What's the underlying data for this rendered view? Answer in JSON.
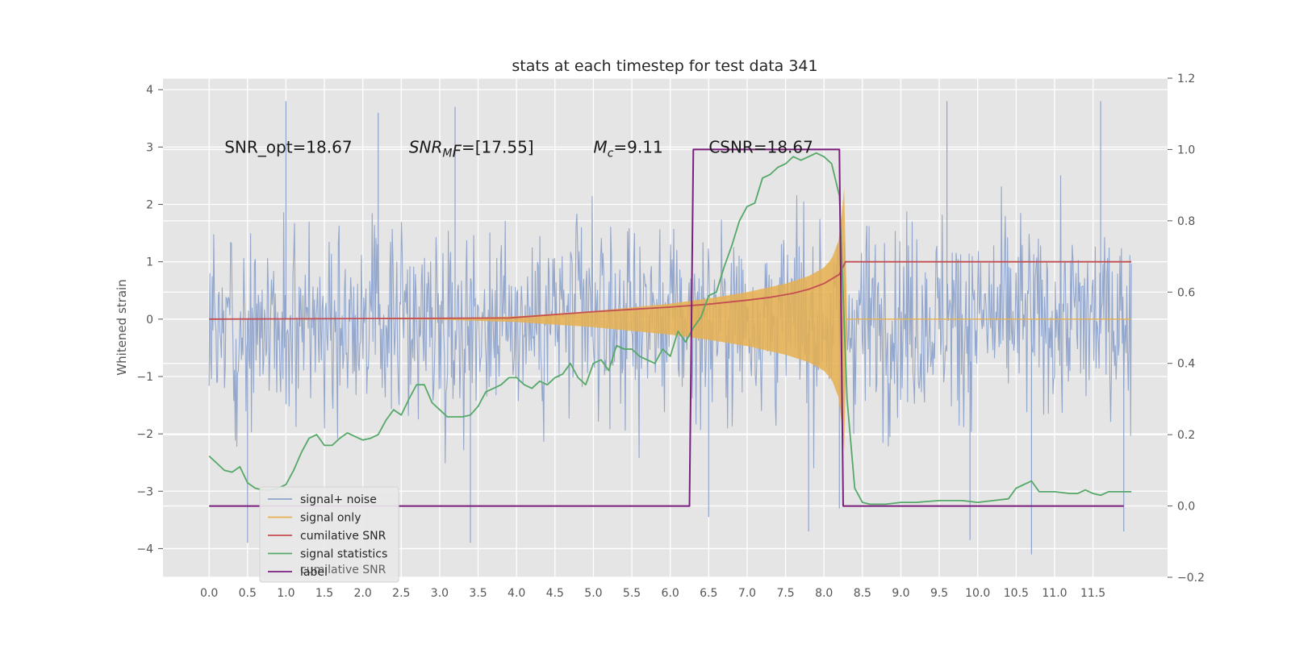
{
  "chart_data": {
    "type": "line",
    "title": "stats at each timestep for test data 341",
    "ylabel": "Whitened strain",
    "xlabel": "",
    "xlim": [
      -0.6,
      12.47
    ],
    "ylim": [
      -4.5,
      4.2
    ],
    "ylim_right": [
      -0.2,
      1.2
    ],
    "x_ticks": [
      0.0,
      0.5,
      1.0,
      1.5,
      2.0,
      2.5,
      3.0,
      3.5,
      4.0,
      4.5,
      5.0,
      5.5,
      6.0,
      6.5,
      7.0,
      7.5,
      8.0,
      8.5,
      9.0,
      9.5,
      10.0,
      10.5,
      11.0,
      11.5
    ],
    "x_tick_labels": [
      "0.0",
      "0.5",
      "1.0",
      "1.5",
      "2.0",
      "2.5",
      "3.0",
      "3.5",
      "4.0",
      "4.5",
      "5.0",
      "5.5",
      "6.0",
      "6.5",
      "7.0",
      "7.5",
      "8.0",
      "8.5",
      "9.0",
      "9.5",
      "10.0",
      "10.5",
      "11.0",
      "11.5"
    ],
    "y_ticks_left": [
      -4,
      -3,
      -2,
      -1,
      0,
      1,
      2,
      3,
      4
    ],
    "y_tick_labels_left": [
      "−4",
      "−3",
      "−2",
      "−1",
      "0",
      "1",
      "2",
      "3",
      "4"
    ],
    "y_ticks_right": [
      -0.2,
      0.0,
      0.2,
      0.4,
      0.6,
      0.8,
      1.0,
      1.2
    ],
    "y_tick_labels_right": [
      "−0.2",
      "0.0",
      "0.2",
      "0.4",
      "0.6",
      "0.8",
      "1.0",
      "1.2"
    ],
    "grid": true,
    "legend_position": "lower-left",
    "annotations": [
      {
        "text": "SNR_opt=18.67",
        "x": 0.2,
        "y": 3.0
      },
      {
        "main": "SNR",
        "sub": "M",
        "rest": "F=[17.55]",
        "x": 2.6,
        "y": 3.0
      },
      {
        "main": "M",
        "sub": "c",
        "rest": "=9.11",
        "x": 5.0,
        "y": 3.0
      },
      {
        "text": "CSNR=18.67",
        "x": 6.5,
        "y": 3.0
      }
    ],
    "series": [
      {
        "name": "signal+ noise",
        "color": "#8ea3cb",
        "axis": "left",
        "x_range": [
          0.0,
          12.0
        ],
        "typical_amplitude": 1.9,
        "notable_points": [
          {
            "x": 0.5,
            "y": -3.9
          },
          {
            "x": 1.0,
            "y": 3.8
          },
          {
            "x": 2.2,
            "y": 3.6
          },
          {
            "x": 3.2,
            "y": 3.7
          },
          {
            "x": 3.4,
            "y": -3.9
          },
          {
            "x": 6.5,
            "y": -3.45
          },
          {
            "x": 7.8,
            "y": -3.7
          },
          {
            "x": 8.2,
            "y": -3.3
          },
          {
            "x": 9.6,
            "y": 3.8
          },
          {
            "x": 9.9,
            "y": -3.85
          },
          {
            "x": 10.7,
            "y": -4.1
          },
          {
            "x": 11.6,
            "y": 3.8
          },
          {
            "x": 11.9,
            "y": -3.7
          }
        ]
      },
      {
        "name": "signal only",
        "color": "#e6b050",
        "axis": "left",
        "envelope": {
          "x": [
            0.0,
            1.0,
            2.0,
            3.0,
            4.0,
            5.0,
            6.0,
            6.5,
            7.0,
            7.5,
            7.8,
            8.0,
            8.1,
            8.2,
            8.27,
            8.3,
            12.0
          ],
          "amplitude": [
            0.0,
            0.0,
            0.0,
            0.01,
            0.05,
            0.14,
            0.27,
            0.36,
            0.47,
            0.62,
            0.75,
            0.9,
            1.05,
            1.4,
            2.4,
            0.0,
            0.0
          ]
        }
      },
      {
        "name": "cumilative SNR",
        "color": "#c44e52",
        "axis": "left",
        "x": [
          0.0,
          1.0,
          2.0,
          3.0,
          3.9,
          4.5,
          5.0,
          5.5,
          6.0,
          6.5,
          7.0,
          7.3,
          7.6,
          7.8,
          8.0,
          8.2,
          8.28,
          8.5,
          12.0
        ],
        "y": [
          0.0,
          0.005,
          0.01,
          0.015,
          0.02,
          0.08,
          0.13,
          0.17,
          0.21,
          0.26,
          0.33,
          0.38,
          0.45,
          0.52,
          0.62,
          0.78,
          1.0,
          1.0,
          1.0
        ]
      },
      {
        "name": "signal statistics",
        "color": "#55a868",
        "axis": "right",
        "x": [
          0.0,
          0.1,
          0.2,
          0.3,
          0.4,
          0.5,
          0.6,
          0.7,
          0.8,
          0.9,
          1.0,
          1.1,
          1.2,
          1.3,
          1.4,
          1.5,
          1.6,
          1.7,
          1.8,
          1.9,
          2.0,
          2.1,
          2.2,
          2.3,
          2.4,
          2.5,
          2.6,
          2.7,
          2.8,
          2.9,
          3.0,
          3.1,
          3.2,
          3.3,
          3.4,
          3.5,
          3.6,
          3.7,
          3.8,
          3.9,
          4.0,
          4.1,
          4.2,
          4.3,
          4.4,
          4.5,
          4.6,
          4.7,
          4.8,
          4.9,
          5.0,
          5.1,
          5.2,
          5.3,
          5.4,
          5.5,
          5.6,
          5.7,
          5.8,
          5.9,
          6.0,
          6.1,
          6.2,
          6.3,
          6.4,
          6.5,
          6.6,
          6.7,
          6.8,
          6.9,
          7.0,
          7.1,
          7.2,
          7.3,
          7.4,
          7.5,
          7.6,
          7.7,
          7.8,
          7.9,
          8.0,
          8.1,
          8.2,
          8.3,
          8.4,
          8.5,
          8.6,
          8.8,
          9.0,
          9.2,
          9.5,
          9.8,
          10.0,
          10.2,
          10.4,
          10.5,
          10.6,
          10.7,
          10.8,
          11.0,
          11.2,
          11.3,
          11.4,
          11.5,
          11.6,
          11.7,
          11.8,
          12.0
        ],
        "y": [
          0.14,
          0.12,
          0.1,
          0.095,
          0.11,
          0.065,
          0.05,
          0.045,
          0.045,
          0.05,
          0.06,
          0.1,
          0.15,
          0.19,
          0.2,
          0.17,
          0.17,
          0.19,
          0.205,
          0.195,
          0.185,
          0.19,
          0.2,
          0.24,
          0.27,
          0.255,
          0.3,
          0.34,
          0.34,
          0.29,
          0.27,
          0.25,
          0.25,
          0.25,
          0.255,
          0.28,
          0.32,
          0.33,
          0.34,
          0.36,
          0.36,
          0.34,
          0.33,
          0.35,
          0.34,
          0.36,
          0.37,
          0.4,
          0.36,
          0.34,
          0.4,
          0.41,
          0.38,
          0.45,
          0.44,
          0.44,
          0.42,
          0.41,
          0.4,
          0.44,
          0.42,
          0.49,
          0.46,
          0.5,
          0.53,
          0.59,
          0.6,
          0.67,
          0.73,
          0.8,
          0.84,
          0.85,
          0.92,
          0.93,
          0.95,
          0.96,
          0.98,
          0.97,
          0.98,
          0.99,
          0.98,
          0.96,
          0.87,
          0.3,
          0.05,
          0.01,
          0.005,
          0.005,
          0.01,
          0.01,
          0.015,
          0.015,
          0.01,
          0.015,
          0.02,
          0.05,
          0.06,
          0.07,
          0.04,
          0.04,
          0.035,
          0.035,
          0.045,
          0.035,
          0.03,
          0.04,
          0.04,
          0.04
        ]
      },
      {
        "name": "label",
        "color": "#7b1f7f",
        "axis": "right",
        "x": [
          0.0,
          6.25,
          6.3,
          8.2,
          8.25,
          11.9
        ],
        "y": [
          0.0,
          0.0,
          1.0,
          1.0,
          0.0,
          0.0
        ]
      }
    ],
    "legend_entries": [
      "signal+ noise",
      "signal only",
      "cumilative SNR",
      "signal statistics",
      "label"
    ],
    "legend_ghost_text": "cumilative SNR"
  }
}
